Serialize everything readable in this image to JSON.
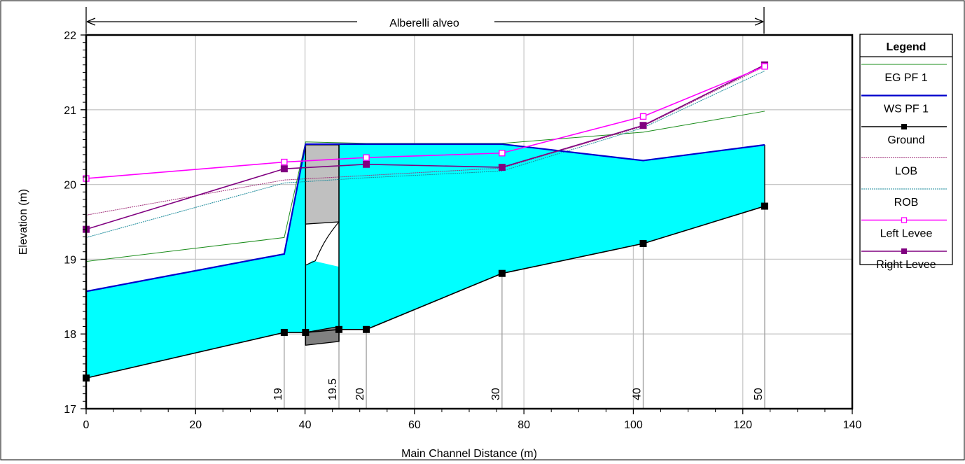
{
  "chart_data": {
    "type": "line",
    "title": "Alberelli alveo",
    "xlabel": "Main Channel Distance (m)",
    "ylabel": "Elevation (m)",
    "xlim": [
      0,
      140
    ],
    "ylim": [
      17,
      22
    ],
    "xticks": [
      0,
      20,
      40,
      60,
      80,
      100,
      120,
      140
    ],
    "yticks": [
      17,
      18,
      19,
      20,
      21,
      22
    ],
    "x_tick_labels": [
      "0",
      "20",
      "40",
      "60",
      "80",
      "100",
      "120",
      "140"
    ],
    "y_tick_labels": [
      "17",
      "18",
      "19",
      "20",
      "21",
      "22"
    ],
    "grid": true,
    "legend_position": "right",
    "legend_title": "Legend",
    "colors": {
      "eg": "#1a8c1a",
      "ws": "#0000cc",
      "ground": "#000000",
      "lob": "#a0307a",
      "rob": "#1a8a9a",
      "left_levee": "#ff00ff",
      "right_levee": "#800080",
      "water_fill": "#00ffff",
      "bridge_deck": "#c0c0c0",
      "bridge_footing": "#808080"
    },
    "stations": [
      {
        "label": "19",
        "x": 36.2
      },
      {
        "label": "19.5",
        "x": 46.2
      },
      {
        "label": "20",
        "x": 51.2
      },
      {
        "label": "30",
        "x": 76.0
      },
      {
        "label": "40",
        "x": 101.8
      },
      {
        "label": "50",
        "x": 124.0
      }
    ],
    "series": [
      {
        "name": "EG  PF 1",
        "key": "eg",
        "x": [
          0,
          36.2,
          40.1,
          51.2,
          76.0,
          101.8,
          124.0
        ],
        "y": [
          18.97,
          19.29,
          20.57,
          20.55,
          20.55,
          20.7,
          20.98
        ]
      },
      {
        "name": "WS  PF 1",
        "key": "ws",
        "x": [
          0,
          36.2,
          40.1,
          46.2,
          51.2,
          76.0,
          101.8,
          124.0
        ],
        "y": [
          18.57,
          19.07,
          20.54,
          20.54,
          20.54,
          20.54,
          20.32,
          20.53
        ]
      },
      {
        "name": "Ground",
        "key": "ground",
        "x": [
          0,
          36.2,
          40.1,
          46.2,
          51.2,
          76.0,
          101.8,
          124.0
        ],
        "y": [
          17.41,
          18.02,
          18.02,
          18.06,
          18.06,
          18.81,
          19.21,
          19.71
        ]
      },
      {
        "name": "LOB",
        "key": "lob",
        "x": [
          0,
          36.2,
          51.2,
          76.0,
          101.8,
          124.0
        ],
        "y": [
          19.59,
          20.06,
          20.12,
          20.22,
          20.78,
          21.58
        ]
      },
      {
        "name": "ROB",
        "key": "rob",
        "x": [
          0,
          36.2,
          51.2,
          76.0,
          101.8,
          124.0
        ],
        "y": [
          19.29,
          20.02,
          20.09,
          20.18,
          20.76,
          21.52
        ]
      },
      {
        "name": "Left Levee",
        "key": "left_levee",
        "x": [
          0,
          36.2,
          51.2,
          76.0,
          101.8,
          124.0
        ],
        "y": [
          20.08,
          20.3,
          20.36,
          20.42,
          20.91,
          21.58
        ]
      },
      {
        "name": "Right Levee",
        "key": "right_levee",
        "x": [
          0,
          36.2,
          51.2,
          76.0,
          101.8,
          124.0
        ],
        "y": [
          19.4,
          20.21,
          20.27,
          20.23,
          20.79,
          21.6
        ]
      }
    ],
    "bridge": {
      "x_left": 40.1,
      "x_right": 46.2,
      "deck_top": 20.53,
      "deck_bottom_left": 19.47,
      "deck_bottom_right": 19.5,
      "footing_top_left": 18.02,
      "footing_top_right": 18.1,
      "footing_bottom_left": 17.85,
      "footing_bottom_right": 17.9
    }
  }
}
